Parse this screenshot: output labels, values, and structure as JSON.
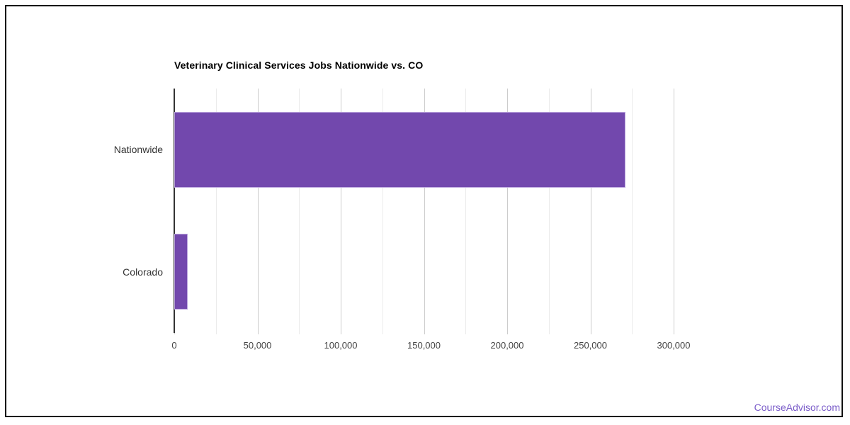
{
  "page": {
    "background": "#ffffff",
    "frame_color": "#111111"
  },
  "watermark": {
    "label": "CourseAdvisor.com",
    "color": "#7a5cc9"
  },
  "chart_data": {
    "type": "bar",
    "orientation": "horizontal",
    "title": "Veterinary Clinical Services Jobs Nationwide vs. CO",
    "categories": [
      "Nationwide",
      "Colorado"
    ],
    "values": [
      271000,
      8000
    ],
    "xlabel": "",
    "ylabel": "",
    "xlim": [
      0,
      337500
    ],
    "x_tick_max": 300000,
    "x_tick_interval_labeled": 50000,
    "x_tick_interval_minor": 25000,
    "x_tick_labels": [
      "0",
      "50,000",
      "100,000",
      "150,000",
      "200,000",
      "250,000",
      "300,000"
    ],
    "legend": "none",
    "grid": "vertical",
    "bar_color": "#7248ad",
    "bar_border_color": "#bca6de",
    "gridline_major_color": "#cccccc",
    "gridline_minor_color": "#ebebeb",
    "axis_line_color": "#333333",
    "title_color": "#000000",
    "category_label_color": "#333333",
    "tick_label_color": "#444444"
  }
}
